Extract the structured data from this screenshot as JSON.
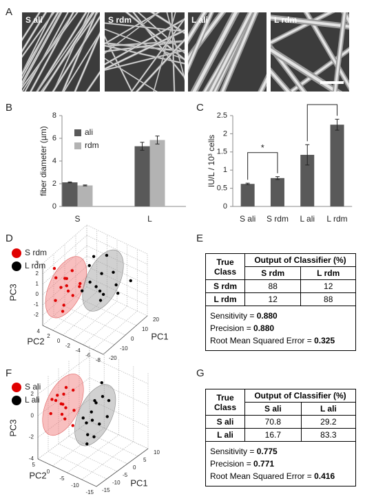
{
  "panel_labels": [
    "A",
    "B",
    "C",
    "D",
    "E",
    "F",
    "G"
  ],
  "images": [
    {
      "label": "S ali"
    },
    {
      "label": "S rdm"
    },
    {
      "label": "L ali"
    },
    {
      "label": "L rdm"
    }
  ],
  "chart_data": [
    {
      "type": "bar",
      "y_label": "fiber diameter (µm)",
      "categories": [
        "S",
        "L"
      ],
      "series": [
        {
          "name": "ali",
          "color": "#595959",
          "values": [
            2.12,
            5.3
          ],
          "errors": [
            0.04,
            0.35
          ]
        },
        {
          "name": "rdm",
          "color": "#b3b3b3",
          "values": [
            1.85,
            5.85
          ],
          "errors": [
            0.04,
            0.35
          ]
        }
      ],
      "ylim": [
        0,
        8
      ],
      "yticks": [
        0,
        2,
        4,
        6,
        8
      ]
    },
    {
      "type": "bar",
      "y_label": "IU/L / 10³ cells",
      "categories": [
        "S ali",
        "S rdm",
        "L ali",
        "L rdm"
      ],
      "values": [
        0.62,
        0.78,
        1.42,
        2.25
      ],
      "errors": [
        0.02,
        0.04,
        0.28,
        0.15
      ],
      "color": "#595959",
      "significance_label": "*",
      "ylim": [
        0,
        2.5
      ],
      "yticks": [
        0,
        0.5,
        1,
        1.5,
        2,
        2.5
      ]
    },
    {
      "type": "scatter3d",
      "x_label": "PC1",
      "y_label": "PC2",
      "z_label": "PC3",
      "xlim": [
        -20,
        20
      ],
      "xticks": [
        -20,
        -10,
        0,
        10,
        20
      ],
      "ylim": [
        -8,
        4
      ],
      "yticks": [
        -8,
        -6,
        -4,
        -2,
        0,
        2,
        4
      ],
      "zlim": [
        -3,
        3
      ],
      "zticks": [
        -2,
        -1,
        0,
        1,
        2,
        3
      ],
      "series": [
        {
          "name": "S rdm",
          "color": "#e00000",
          "x": [
            -14,
            -12,
            -9,
            -8,
            -11,
            -6,
            -13,
            -7,
            -10,
            -5,
            -12,
            -8,
            -9,
            -11
          ],
          "y": [
            3,
            1,
            2,
            4,
            0,
            2,
            3,
            1,
            2,
            0,
            1,
            3,
            -1,
            2
          ],
          "z": [
            2.2,
            1.5,
            1,
            0.5,
            0,
            -0.5,
            -1,
            1.8,
            -1.5,
            0.3,
            0.8,
            -0.2,
            1.2,
            -2
          ]
        },
        {
          "name": "L rdm",
          "color": "#000000",
          "x": [
            0,
            3,
            6,
            8,
            10,
            2,
            5,
            12,
            7,
            4,
            9,
            1,
            14,
            6
          ],
          "y": [
            -1,
            -3,
            -2,
            0,
            -4,
            1,
            -2,
            -3,
            -5,
            0,
            -1,
            -2,
            -6,
            -3
          ],
          "z": [
            0.5,
            -0.5,
            1,
            2,
            0,
            -1,
            -1.5,
            0.8,
            -0.3,
            1.5,
            -1.2,
            0.2,
            0.5,
            3
          ]
        }
      ]
    },
    {
      "type": "scatter3d",
      "x_label": "PC1",
      "y_label": "PC2",
      "z_label": "PC3",
      "xlim": [
        -15,
        10
      ],
      "xticks": [
        -15,
        -10,
        -5,
        0,
        5,
        10
      ],
      "ylim": [
        -15,
        5
      ],
      "yticks": [
        -15,
        -10,
        -5,
        0,
        5
      ],
      "zlim": [
        -4,
        3
      ],
      "zticks": [
        -4,
        -2,
        0,
        2
      ],
      "series": [
        {
          "name": "S ali",
          "color": "#e00000",
          "x": [
            -12,
            -10,
            -8,
            -6,
            -11,
            -9,
            -7,
            -13,
            -8,
            -10,
            -5,
            -9,
            -11,
            -7
          ],
          "y": [
            1,
            0,
            2,
            -1,
            3,
            0,
            1,
            2,
            -2,
            -1,
            0,
            1,
            -1,
            4
          ],
          "z": [
            1.5,
            1,
            0.5,
            0,
            1.2,
            -0.5,
            2,
            0.3,
            -1,
            0.8,
            1.6,
            -0.2,
            2.2,
            0.9
          ]
        },
        {
          "name": "L ali",
          "color": "#000000",
          "x": [
            -3,
            0,
            2,
            4,
            -2,
            1,
            5,
            -4,
            3,
            6,
            0,
            -1,
            8,
            2
          ],
          "y": [
            -2,
            -3,
            -4,
            -1,
            -5,
            -2,
            -3,
            -4,
            -6,
            -2,
            -1,
            -5,
            -3,
            0
          ],
          "z": [
            -1,
            -1.5,
            -2,
            -0.5,
            -2.5,
            -1,
            0,
            -3,
            -1.2,
            1,
            -2,
            0.5,
            -0.8,
            -3.5
          ]
        }
      ]
    }
  ],
  "tables": [
    {
      "row_header": "True Class",
      "group_header": "Output of Classifier (%)",
      "columns": [
        "S rdm",
        "L rdm"
      ],
      "rows": [
        [
          "S rdm",
          "88",
          "12"
        ],
        [
          "L rdm",
          "12",
          "88"
        ]
      ],
      "metrics": [
        {
          "label": "Sensitivity =",
          "value": "0.880"
        },
        {
          "label": "Precision =",
          "value": "0.880"
        },
        {
          "label": "Root Mean Squared Error =",
          "value": "0.325"
        }
      ]
    },
    {
      "row_header": "True Class",
      "group_header": "Output of Classifier (%)",
      "columns": [
        "S ali",
        "L ali"
      ],
      "rows": [
        [
          "S ali",
          "70.8",
          "29.2"
        ],
        [
          "L ali",
          "16.7",
          "83.3"
        ]
      ],
      "metrics": [
        {
          "label": "Sensitivity =",
          "value": "0.775"
        },
        {
          "label": "Precision =",
          "value": "0.771"
        },
        {
          "label": "Root Mean Squared Error =",
          "value": "0.416"
        }
      ]
    }
  ]
}
